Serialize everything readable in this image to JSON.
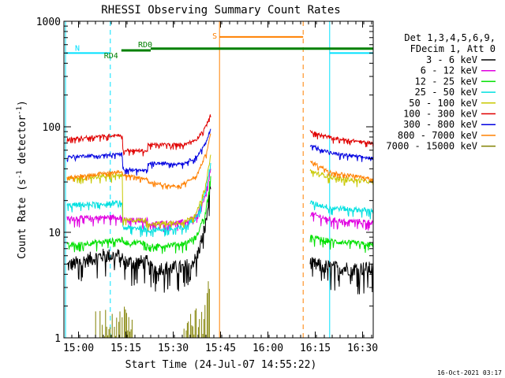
{
  "chart_data": {
    "type": "line",
    "title": "RHESSI Observing Summary Count Rates",
    "xlabel": "Start Time (24-Jul-07 14:55:22)",
    "ylabel": "Count Rate (s",
    "ylabel_sup": "-1",
    "ylabel_mid": " detector",
    "ylabel_sup2": "-1",
    "ylabel_end": ")",
    "x_unit": "minutes after 14:55:22",
    "xlim": [
      0,
      98
    ],
    "ylim": [
      1,
      1000
    ],
    "y_scale": "log",
    "x_ticks": [
      {
        "value": 4.63,
        "label": "15:00"
      },
      {
        "value": 19.63,
        "label": "15:15"
      },
      {
        "value": 34.63,
        "label": "15:30"
      },
      {
        "value": 49.63,
        "label": "15:45"
      },
      {
        "value": 64.63,
        "label": "16:00"
      },
      {
        "value": 79.63,
        "label": "16:15"
      },
      {
        "value": 94.63,
        "label": "16:30"
      }
    ],
    "y_ticks": [
      {
        "value": 1,
        "label": "1"
      },
      {
        "value": 10,
        "label": "10"
      },
      {
        "value": 100,
        "label": "100"
      },
      {
        "value": 1000,
        "label": "1000"
      }
    ],
    "legend": {
      "header": [
        "Det 1,3,4,5,6,9,",
        "FDecim 1, Att 0"
      ],
      "placement": "right"
    },
    "series": [
      {
        "name": "3 - 6 keV",
        "color": "#000000",
        "noise": 0.14,
        "segments": [
          [
            [
              1,
              4.8
            ],
            [
              12,
              6.0
            ],
            [
              18.5,
              6.0
            ],
            [
              18.6,
              5.2
            ],
            [
              26.5,
              5.2
            ],
            [
              26.6,
              4.6
            ],
            [
              38,
              4.6
            ],
            [
              42,
              5.6
            ],
            [
              45,
              12
            ],
            [
              46.5,
              30
            ]
          ],
          [
            [
              78,
              5.0
            ],
            [
              85,
              4.6
            ],
            [
              98,
              4.5
            ]
          ]
        ]
      },
      {
        "name": "6 - 12 keV",
        "color": "#e000e0",
        "noise": 0.05,
        "segments": [
          [
            [
              1,
              13.5
            ],
            [
              18.5,
              14.0
            ],
            [
              18.6,
              13.0
            ],
            [
              26.5,
              13.0
            ],
            [
              26.6,
              12.0
            ],
            [
              38,
              12.5
            ],
            [
              42,
              14
            ],
            [
              45,
              22
            ],
            [
              46.5,
              40
            ]
          ],
          [
            [
              78,
              15
            ],
            [
              85,
              13
            ],
            [
              98,
              12.5
            ]
          ]
        ]
      },
      {
        "name": "12 - 25 keV",
        "color": "#00e000",
        "noise": 0.05,
        "segments": [
          [
            [
              1,
              7.5
            ],
            [
              18.5,
              8.5
            ],
            [
              18.6,
              8.0
            ],
            [
              26.5,
              8.0
            ],
            [
              26.6,
              7.3
            ],
            [
              38,
              7.8
            ],
            [
              42,
              9
            ],
            [
              45,
              16
            ],
            [
              46.5,
              35
            ]
          ],
          [
            [
              78,
              9.0
            ],
            [
              85,
              8.2
            ],
            [
              98,
              7.6
            ]
          ]
        ]
      },
      {
        "name": "25 - 50 keV",
        "color": "#00e0e0",
        "noise": 0.05,
        "segments": [
          [
            [
              1,
              18
            ],
            [
              18.5,
              19
            ],
            [
              18.6,
              11
            ],
            [
              26.5,
              11
            ],
            [
              26.6,
              10.5
            ],
            [
              38,
              11
            ],
            [
              42,
              14
            ],
            [
              45,
              25
            ],
            [
              46.5,
              45
            ]
          ],
          [
            [
              78,
              19
            ],
            [
              85,
              17
            ],
            [
              98,
              16
            ]
          ]
        ]
      },
      {
        "name": "50 - 100 keV",
        "color": "#c8c800",
        "noise": 0.04,
        "segments": [
          [
            [
              1,
              32
            ],
            [
              18.5,
              35
            ],
            [
              18.6,
              13
            ],
            [
              26.5,
              13
            ],
            [
              26.6,
              12
            ],
            [
              38,
              12.5
            ],
            [
              42,
              15
            ],
            [
              45,
              28
            ],
            [
              46.5,
              55
            ]
          ],
          [
            [
              78,
              38
            ],
            [
              85,
              33
            ],
            [
              98,
              30
            ]
          ]
        ]
      },
      {
        "name": "100 - 300 keV",
        "color": "#e00000",
        "noise": 0.03,
        "segments": [
          [
            [
              1,
              76
            ],
            [
              8,
              80
            ],
            [
              18.5,
              84
            ],
            [
              18.6,
              60
            ],
            [
              26.5,
              59
            ],
            [
              26.6,
              68
            ],
            [
              38,
              68
            ],
            [
              42,
              76
            ],
            [
              45,
              100
            ],
            [
              46.5,
              135
            ]
          ],
          [
            [
              78,
              90
            ],
            [
              85,
              78
            ],
            [
              98,
              70
            ]
          ]
        ]
      },
      {
        "name": "300 - 800 keV",
        "color": "#0000e0",
        "noise": 0.03,
        "segments": [
          [
            [
              1,
              52
            ],
            [
              18.5,
              55
            ],
            [
              18.6,
              40
            ],
            [
              26.5,
              38
            ],
            [
              26.6,
              45
            ],
            [
              38,
              45
            ],
            [
              42,
              52
            ],
            [
              45,
              70
            ],
            [
              46.5,
              95
            ]
          ],
          [
            [
              78,
              67
            ],
            [
              85,
              56
            ],
            [
              98,
              50
            ]
          ]
        ]
      },
      {
        "name": "800 - 7000 keV",
        "color": "#ff8000",
        "noise": 0.03,
        "segments": [
          [
            [
              1,
              33
            ],
            [
              18.5,
              38
            ],
            [
              18.6,
              35
            ],
            [
              26.5,
              32
            ],
            [
              26.6,
              30
            ],
            [
              36,
              27
            ],
            [
              42,
              34
            ],
            [
              45,
              55
            ],
            [
              46.5,
              85
            ]
          ],
          [
            [
              78,
              47
            ],
            [
              85,
              37
            ],
            [
              98,
              32
            ]
          ]
        ]
      },
      {
        "name": "7000 - 15000 keV",
        "color": "#808000",
        "noise": 0,
        "segments": [
          [
            [
              1,
              1
            ],
            [
              46.5,
              1
            ]
          ],
          [
            [
              78,
              1
            ],
            [
              98,
              1
            ]
          ]
        ]
      }
    ],
    "flags": [
      {
        "label": "N",
        "color": "#00e0ff",
        "y": 500,
        "x_start": 0.5,
        "x_end": 14.7,
        "dash_at": 14.7
      },
      {
        "label": "N",
        "color": "#00e0ff",
        "y": 500,
        "x_start": 84.2,
        "x_end": 98,
        "dash_at": 98
      },
      {
        "label": "S",
        "color": "#ff8000",
        "y": 710,
        "x_start": 49.3,
        "x_end": 75.8,
        "dash_at": 75.8
      },
      {
        "label": "RD0",
        "color": "#008000",
        "y": 550,
        "x_start": 27.5,
        "x_end": 98
      },
      {
        "label": "RD4",
        "color": "#008000",
        "y": 530,
        "x_start": 18.2,
        "x_end": 27.5
      }
    ],
    "gap": {
      "x_start": 46.5,
      "x_end": 78
    },
    "timestamp": "16-Oct-2021 03:17"
  }
}
